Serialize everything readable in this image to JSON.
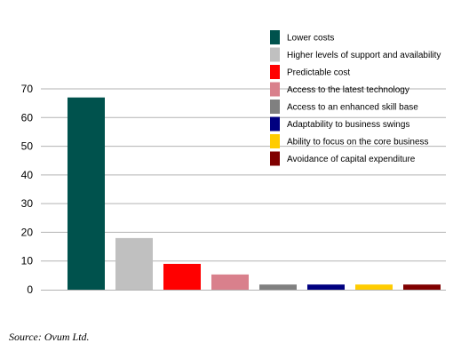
{
  "chart_data": {
    "type": "bar",
    "categories": [
      "Lower costs",
      "Higher levels of support and availability",
      "Predictable cost",
      "Access to the latest technology",
      "Access to an enhanced skill base",
      "Adaptability to business swings",
      "Ability to focus on the core business",
      "Avoidance of capital expenditure"
    ],
    "values": [
      67,
      18,
      9,
      5.3,
      1.8,
      1.8,
      1.8,
      1.8
    ],
    "colors": [
      "#00524d",
      "#c0c0c0",
      "#ff0000",
      "#d9808c",
      "#808080",
      "#000080",
      "#ffcc00",
      "#800000"
    ],
    "ylim": [
      0,
      70
    ],
    "yticks": [
      0,
      10,
      20,
      30,
      40,
      50,
      60,
      70
    ],
    "grid": true,
    "legend_position": "top-right",
    "title": "",
    "xlabel": "",
    "ylabel": ""
  },
  "source_note": "Source: Ovum Ltd."
}
